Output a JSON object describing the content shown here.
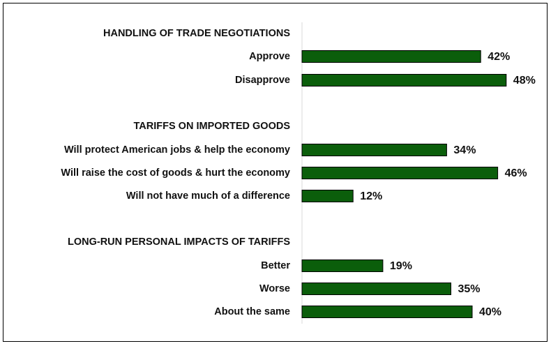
{
  "chart_data": {
    "type": "bar",
    "orientation": "horizontal",
    "bar_color": "#0b5e0b",
    "bar_border_color": "#000000",
    "grid": false,
    "unit": "%",
    "groups": [
      {
        "title": "HANDLING OF TRADE NEGOTIATIONS",
        "items": [
          {
            "label": "Approve",
            "value": 42,
            "display": "42%"
          },
          {
            "label": "Disapprove",
            "value": 48,
            "display": "48%"
          }
        ]
      },
      {
        "title": "TARIFFS ON IMPORTED GOODS",
        "items": [
          {
            "label": "Will protect American jobs & help the economy",
            "value": 34,
            "display": "34%"
          },
          {
            "label": "Will raise the cost of goods & hurt the economy",
            "value": 46,
            "display": "46%"
          },
          {
            "label": "Will not have much of a difference",
            "value": 12,
            "display": "12%"
          }
        ]
      },
      {
        "title": "LONG-RUN PERSONAL IMPACTS OF TARIFFS",
        "items": [
          {
            "label": "Better",
            "value": 19,
            "display": "19%"
          },
          {
            "label": "Worse",
            "value": 35,
            "display": "35%"
          },
          {
            "label": "About the same",
            "value": 40,
            "display": "40%"
          }
        ]
      }
    ]
  }
}
